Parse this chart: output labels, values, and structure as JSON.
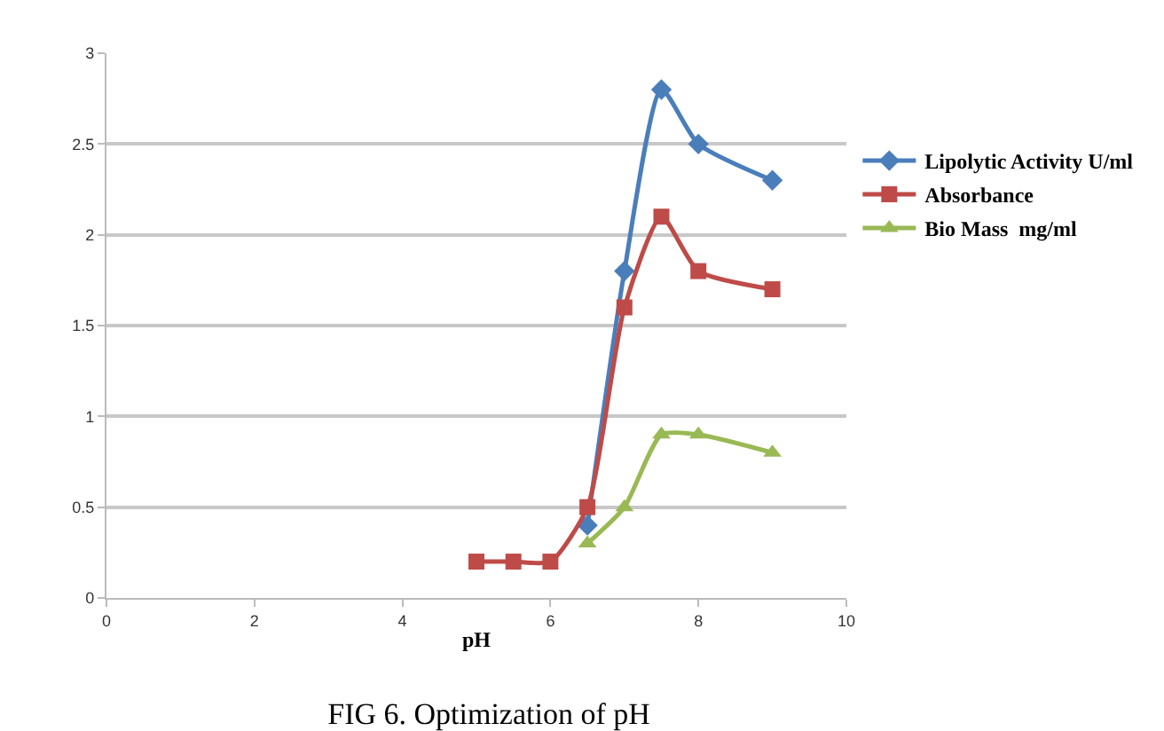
{
  "chart_data": {
    "type": "line",
    "title": "FIG 6. Optimization of pH",
    "xlabel": "pH",
    "xlim": [
      0,
      10
    ],
    "xticks": [
      0,
      2,
      4,
      6,
      8,
      10
    ],
    "ylim": [
      0,
      3
    ],
    "yticks": [
      0,
      0.5,
      1,
      1.5,
      2,
      2.5,
      3
    ],
    "grid": "y",
    "legend": "right",
    "series": [
      {
        "name": "Lipolytic Activity U/ml",
        "color": "#4a7ebb",
        "marker": "diamond",
        "x": [
          6.5,
          7,
          7.5,
          8,
          9
        ],
        "values": [
          0.4,
          1.8,
          2.8,
          2.5,
          2.3
        ]
      },
      {
        "name": "Absorbance",
        "color": "#be4b48",
        "marker": "square",
        "x": [
          5,
          5.5,
          6,
          6.5,
          7,
          7.5,
          8,
          9
        ],
        "values": [
          0.2,
          0.2,
          0.2,
          0.5,
          1.6,
          2.1,
          1.8,
          1.7
        ]
      },
      {
        "name": "Bio Mass  mg/ml",
        "color": "#98b954",
        "marker": "triangle",
        "x": [
          6.5,
          7,
          7.5,
          8,
          9
        ],
        "values": [
          0.3,
          0.5,
          0.9,
          0.9,
          0.8
        ]
      }
    ]
  }
}
